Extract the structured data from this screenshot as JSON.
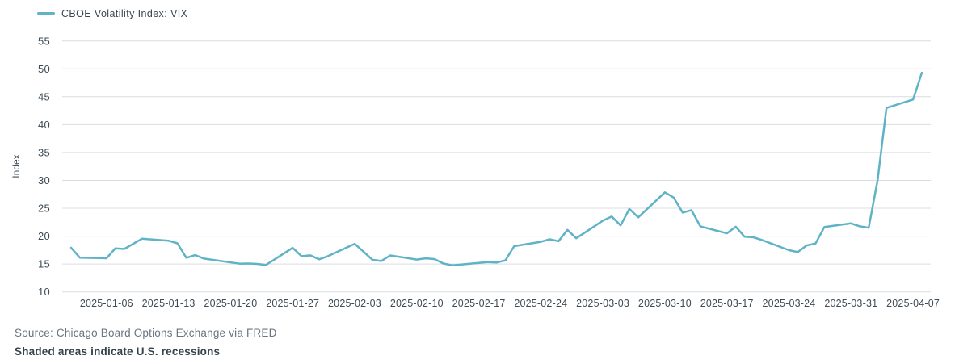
{
  "legend": {
    "label": "CBOE Volatility Index: VIX"
  },
  "footer": {
    "source": "Source: Chicago Board Options Exchange via FRED",
    "note": "Shaded areas indicate U.S. recessions"
  },
  "colors": {
    "line": "#5fb3c6",
    "grid": "#d9dde0",
    "tick_text": "#3e4c56",
    "axis_title": "#3e4c56",
    "legend_text": "#3a4751",
    "source_text": "#6a7580",
    "note_text": "#33424c",
    "background": "#ffffff"
  },
  "chart_data": {
    "type": "line",
    "title": "",
    "xlabel": "",
    "ylabel": "Index",
    "series_name": "CBOE Volatility Index: VIX",
    "grid": "horizontal",
    "legend_position": "top-left",
    "ylim": [
      10,
      55
    ],
    "yticks": [
      10,
      15,
      20,
      25,
      30,
      35,
      40,
      45,
      50,
      55
    ],
    "x_domain": [
      "2025-01-01",
      "2025-04-09"
    ],
    "xticks": [
      "2025-01-06",
      "2025-01-13",
      "2025-01-20",
      "2025-01-27",
      "2025-02-03",
      "2025-02-10",
      "2025-02-17",
      "2025-02-24",
      "2025-03-03",
      "2025-03-10",
      "2025-03-17",
      "2025-03-24",
      "2025-03-31",
      "2025-04-07"
    ],
    "x": [
      "2025-01-02",
      "2025-01-03",
      "2025-01-06",
      "2025-01-07",
      "2025-01-08",
      "2025-01-10",
      "2025-01-13",
      "2025-01-14",
      "2025-01-15",
      "2025-01-16",
      "2025-01-17",
      "2025-01-21",
      "2025-01-22",
      "2025-01-23",
      "2025-01-24",
      "2025-01-27",
      "2025-01-28",
      "2025-01-29",
      "2025-01-30",
      "2025-01-31",
      "2025-02-03",
      "2025-02-04",
      "2025-02-05",
      "2025-02-06",
      "2025-02-07",
      "2025-02-10",
      "2025-02-11",
      "2025-02-12",
      "2025-02-13",
      "2025-02-14",
      "2025-02-18",
      "2025-02-19",
      "2025-02-20",
      "2025-02-21",
      "2025-02-24",
      "2025-02-25",
      "2025-02-26",
      "2025-02-27",
      "2025-02-28",
      "2025-03-03",
      "2025-03-04",
      "2025-03-05",
      "2025-03-06",
      "2025-03-07",
      "2025-03-10",
      "2025-03-11",
      "2025-03-12",
      "2025-03-13",
      "2025-03-14",
      "2025-03-17",
      "2025-03-18",
      "2025-03-19",
      "2025-03-20",
      "2025-03-21",
      "2025-03-24",
      "2025-03-25",
      "2025-03-26",
      "2025-03-27",
      "2025-03-28",
      "2025-03-31",
      "2025-04-01",
      "2025-04-02",
      "2025-04-03",
      "2025-04-04",
      "2025-04-07",
      "2025-04-08"
    ],
    "values": [
      17.93,
      16.13,
      16.04,
      17.82,
      17.7,
      19.54,
      19.19,
      18.71,
      16.12,
      16.6,
      15.97,
      15.06,
      15.1,
      15.02,
      14.85,
      17.9,
      16.41,
      16.56,
      15.84,
      16.43,
      18.62,
      17.21,
      15.77,
      15.54,
      16.54,
      15.81,
      16.02,
      15.89,
      15.1,
      14.77,
      15.35,
      15.27,
      15.66,
      18.21,
      18.98,
      19.43,
      19.1,
      21.13,
      19.63,
      22.78,
      23.51,
      21.93,
      24.87,
      23.37,
      27.86,
      26.92,
      24.23,
      24.66,
      21.77,
      20.51,
      21.7,
      19.9,
      19.8,
      19.28,
      17.48,
      17.15,
      18.33,
      18.69,
      21.65,
      22.28,
      21.77,
      21.51,
      30.02,
      43.0,
      44.5,
      49.3
    ]
  }
}
